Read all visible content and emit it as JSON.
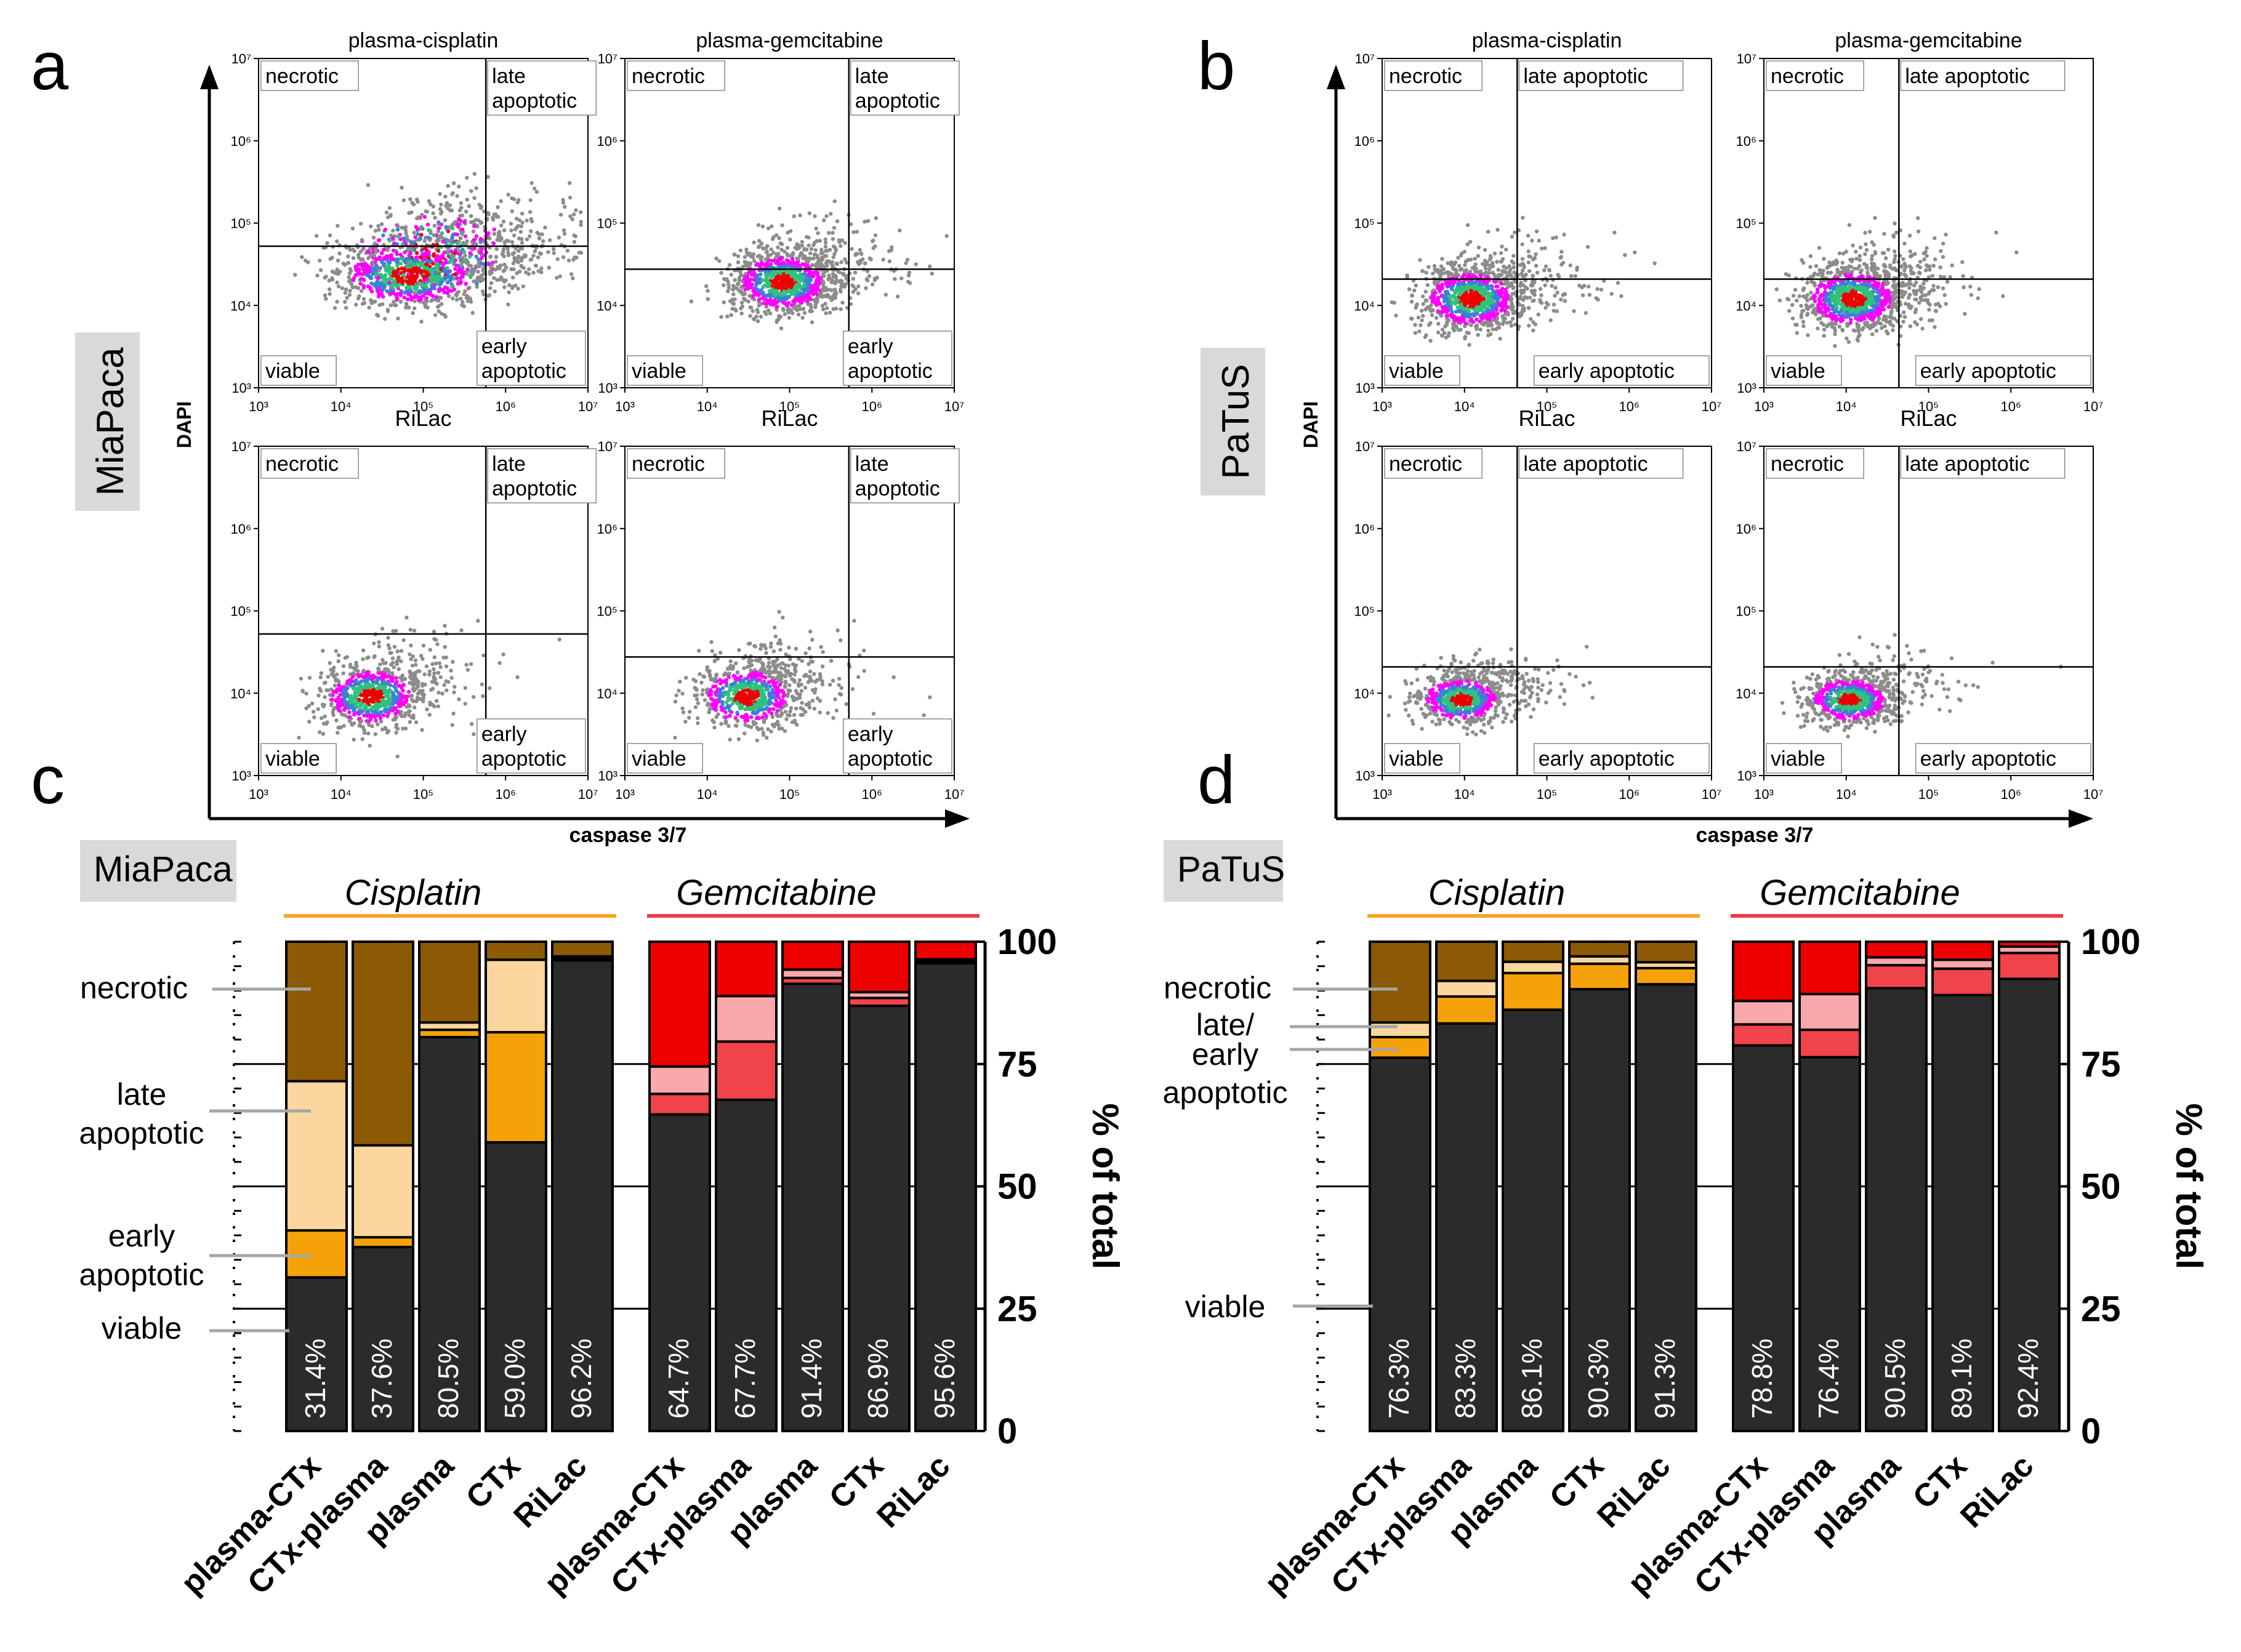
{
  "colors": {
    "viable": "#2b2b2b",
    "cis_early": "#f5a20a",
    "cis_late": "#fbd79f",
    "cis_necrotic": "#8c5a05",
    "gem_early": "#f0434a",
    "gem_late": "#f8a8aa",
    "gem_necrotic": "#ee0000",
    "cis_line": "#f5a623",
    "gem_line": "#ee3c44",
    "cell_bg": "#d9d9d9",
    "flow_hot": "#ee0000",
    "flow_warm": "#2ec27e",
    "flow_mid": "#ff00ff",
    "flow_cool": "#3d7fd6",
    "flow_bg": "#8c8c8c"
  },
  "panel_letters": {
    "a": "a",
    "b": "b",
    "c": "c",
    "d": "d"
  },
  "flow": {
    "top_titles": [
      "plasma-cisplatin",
      "plasma-gemcitabine"
    ],
    "x_axis_label": "RiLac",
    "x_axis_main": "caspase 3/7",
    "y_axis_main": "DAPI",
    "x_ticks": [
      "10³",
      "10⁴",
      "10⁵",
      "10⁶",
      "10⁷"
    ],
    "y_ticks": [
      "10⁷",
      "10⁶",
      "10⁵",
      "10⁴",
      "10³"
    ],
    "quadrants": {
      "necrotic": "necrotic",
      "late": "late",
      "apoptotic": "apoptotic",
      "late_apoptotic": "late apoptotic",
      "early": "early",
      "early_apoptotic": "early apoptotic",
      "viable": "viable"
    }
  },
  "chart_data": [
    {
      "type": "bar",
      "title": "MiaPaca",
      "cell_line": "MiaPaca",
      "groups": [
        {
          "name": "Cisplatin",
          "color": "cis"
        },
        {
          "name": "Gemcitabine",
          "color": "gem"
        }
      ],
      "categories": [
        "plasma-CTx",
        "CTx-plasma",
        "plasma",
        "CTx",
        "RiLac",
        "plasma-CTx",
        "CTx-plasma",
        "plasma",
        "CTx",
        "RiLac"
      ],
      "series": [
        {
          "name": "viable",
          "values": [
            31.4,
            37.6,
            80.5,
            59.0,
            96.2,
            64.7,
            67.7,
            91.4,
            86.9,
            95.6
          ]
        },
        {
          "name": "early apoptotic",
          "values": [
            9.6,
            2.0,
            1.5,
            22.5,
            0.3,
            4.2,
            11.9,
            1.2,
            1.6,
            0.3
          ]
        },
        {
          "name": "late apoptotic",
          "values": [
            30.5,
            18.8,
            1.5,
            14.8,
            0.5,
            5.6,
            9.3,
            1.7,
            1.2,
            0.5
          ]
        },
        {
          "name": "necrotic",
          "values": [
            28.5,
            41.6,
            16.5,
            3.7,
            3.0,
            25.5,
            11.1,
            5.7,
            10.3,
            3.6
          ]
        }
      ],
      "bar_labels": [
        "31.4%",
        "37.6%",
        "80.5%",
        "59.0%",
        "96.2%",
        "64.7%",
        "67.7%",
        "91.4%",
        "86.9%",
        "95.6%"
      ],
      "legend_labels": [
        "necrotic",
        "late",
        "apoptotic",
        "early",
        "apoptotic",
        "viable"
      ],
      "ylabel": "% of total",
      "ylim": [
        0,
        100
      ],
      "yticks": [
        "0",
        "25",
        "50",
        "75",
        "100"
      ]
    },
    {
      "type": "bar",
      "title": "PaTuS",
      "cell_line": "PaTuS",
      "groups": [
        {
          "name": "Cisplatin",
          "color": "cis"
        },
        {
          "name": "Gemcitabine",
          "color": "gem"
        }
      ],
      "categories": [
        "plasma-CTx",
        "CTx-plasma",
        "plasma",
        "CTx",
        "RiLac",
        "plasma-CTx",
        "CTx-plasma",
        "plasma",
        "CTx",
        "RiLac"
      ],
      "series": [
        {
          "name": "viable",
          "values": [
            76.3,
            83.3,
            86.1,
            90.3,
            91.3,
            78.8,
            76.4,
            90.5,
            89.1,
            92.4
          ]
        },
        {
          "name": "early apoptotic",
          "values": [
            4.2,
            5.5,
            7.5,
            5.2,
            3.3,
            4.3,
            5.6,
            4.7,
            5.4,
            5.3
          ]
        },
        {
          "name": "late apoptotic",
          "values": [
            3.0,
            3.2,
            2.3,
            1.5,
            1.2,
            4.8,
            7.3,
            1.6,
            1.8,
            1.3
          ]
        },
        {
          "name": "necrotic",
          "values": [
            16.5,
            8.0,
            4.1,
            3.0,
            4.2,
            12.1,
            10.7,
            3.2,
            3.7,
            1.0
          ]
        }
      ],
      "bar_labels": [
        "76.3%",
        "83.3%",
        "86.1%",
        "90.3%",
        "91.3%",
        "78.8%",
        "76.4%",
        "90.5%",
        "89.1%",
        "92.4%"
      ],
      "legend_labels": [
        "necrotic",
        "late/",
        "early",
        "apoptotic",
        "viable"
      ],
      "ylabel": "% of total",
      "ylim": [
        0,
        100
      ],
      "yticks": [
        "0",
        "25",
        "50",
        "75",
        "100"
      ]
    }
  ]
}
